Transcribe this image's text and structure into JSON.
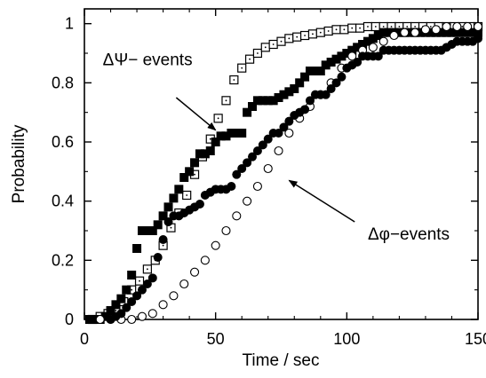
{
  "chart_data": {
    "type": "scatter",
    "title": "",
    "xlabel": "Time / sec",
    "ylabel": "Probability",
    "xlim": [
      0,
      150
    ],
    "ylim": [
      0,
      1.05
    ],
    "xticks": [
      0,
      50,
      100,
      150
    ],
    "yticks": [
      0,
      0.2,
      0.4,
      0.6,
      0.8,
      1
    ],
    "xtick_labels": [
      "0",
      "50",
      "100",
      "150"
    ],
    "ytick_labels": [
      "0",
      "0.2",
      "0.4",
      "0.6",
      "0.8",
      "1"
    ],
    "grid": false,
    "series": [
      {
        "marker": "open-square",
        "color": "#000000",
        "x": [
          3,
          6,
          9,
          12,
          15,
          18,
          21,
          24,
          27,
          30,
          33,
          36,
          39,
          42,
          45,
          48,
          51,
          54,
          57,
          60,
          63,
          66,
          69,
          72,
          75,
          78,
          81,
          84,
          87,
          90,
          93,
          96,
          99,
          102,
          105,
          108,
          111,
          114,
          117,
          120,
          123,
          126,
          129,
          132,
          135,
          138,
          141,
          144,
          147,
          150
        ],
        "y": [
          0,
          0.01,
          0.02,
          0.03,
          0.06,
          0.1,
          0.13,
          0.17,
          0.2,
          0.25,
          0.31,
          0.36,
          0.42,
          0.49,
          0.55,
          0.61,
          0.68,
          0.74,
          0.81,
          0.85,
          0.88,
          0.9,
          0.92,
          0.93,
          0.94,
          0.95,
          0.955,
          0.96,
          0.965,
          0.97,
          0.975,
          0.98,
          0.98,
          0.985,
          0.985,
          0.99,
          0.99,
          0.99,
          0.99,
          0.99,
          0.99,
          0.99,
          0.99,
          0.99,
          0.99,
          0.99,
          0.99,
          0.99,
          0.99,
          0.99
        ]
      },
      {
        "marker": "filled-square",
        "color": "#000000",
        "x": [
          2,
          4,
          6,
          8,
          10,
          12,
          14,
          16,
          18,
          20,
          22,
          24,
          26,
          28,
          30,
          32,
          34,
          36,
          38,
          40,
          42,
          44,
          46,
          48,
          50,
          52,
          54,
          56,
          58,
          60,
          62,
          64,
          66,
          68,
          70,
          72,
          74,
          76,
          78,
          80,
          82,
          84,
          86,
          88,
          90,
          92,
          94,
          96,
          98,
          100,
          102,
          104,
          106,
          108,
          110,
          112,
          114,
          116,
          118,
          120,
          122,
          124,
          126,
          128,
          130,
          132,
          134,
          136,
          138,
          140,
          142,
          144,
          146,
          148,
          150
        ],
        "y": [
          0,
          0,
          0,
          0.01,
          0.03,
          0.05,
          0.07,
          0.1,
          0.15,
          0.24,
          0.3,
          0.3,
          0.3,
          0.32,
          0.35,
          0.38,
          0.41,
          0.44,
          0.48,
          0.5,
          0.53,
          0.56,
          0.56,
          0.57,
          0.6,
          0.62,
          0.62,
          0.63,
          0.63,
          0.63,
          0.7,
          0.72,
          0.74,
          0.74,
          0.74,
          0.74,
          0.75,
          0.76,
          0.77,
          0.78,
          0.8,
          0.82,
          0.84,
          0.84,
          0.84,
          0.86,
          0.87,
          0.88,
          0.89,
          0.9,
          0.91,
          0.92,
          0.93,
          0.94,
          0.95,
          0.96,
          0.97,
          0.97,
          0.97,
          0.97,
          0.97,
          0.97,
          0.97,
          0.97,
          0.97,
          0.97,
          0.97,
          0.97,
          0.97,
          0.97,
          0.97,
          0.97,
          0.97,
          0.97,
          0.97
        ]
      },
      {
        "marker": "open-circle",
        "color": "#000000",
        "x": [
          6,
          10,
          14,
          18,
          22,
          26,
          30,
          34,
          38,
          42,
          46,
          50,
          54,
          58,
          62,
          66,
          70,
          74,
          78,
          82,
          86,
          90,
          94,
          98,
          102,
          106,
          110,
          114,
          118,
          122,
          126,
          130,
          134,
          138,
          142,
          146,
          150
        ],
        "y": [
          0,
          0,
          0,
          0,
          0.01,
          0.02,
          0.05,
          0.08,
          0.12,
          0.16,
          0.2,
          0.25,
          0.3,
          0.35,
          0.4,
          0.45,
          0.51,
          0.57,
          0.63,
          0.68,
          0.72,
          0.76,
          0.8,
          0.85,
          0.89,
          0.91,
          0.92,
          0.94,
          0.96,
          0.97,
          0.97,
          0.98,
          0.98,
          0.99,
          0.99,
          0.99,
          0.99
        ]
      },
      {
        "marker": "filled-circle",
        "color": "#000000",
        "x": [
          10,
          12,
          14,
          16,
          18,
          20,
          22,
          24,
          26,
          28,
          30,
          32,
          34,
          36,
          38,
          40,
          42,
          44,
          46,
          48,
          50,
          52,
          54,
          56,
          58,
          60,
          62,
          64,
          66,
          68,
          70,
          72,
          74,
          76,
          78,
          80,
          82,
          84,
          86,
          88,
          90,
          92,
          94,
          96,
          98,
          100,
          102,
          104,
          106,
          108,
          110,
          112,
          114,
          116,
          118,
          120,
          122,
          124,
          126,
          128,
          130,
          132,
          134,
          136,
          138,
          140,
          142,
          144,
          146,
          148,
          150
        ],
        "y": [
          0,
          0.01,
          0.02,
          0.04,
          0.06,
          0.08,
          0.1,
          0.12,
          0.14,
          0.21,
          0.27,
          0.33,
          0.35,
          0.35,
          0.36,
          0.37,
          0.38,
          0.39,
          0.42,
          0.43,
          0.44,
          0.44,
          0.44,
          0.45,
          0.49,
          0.51,
          0.53,
          0.55,
          0.57,
          0.59,
          0.61,
          0.63,
          0.63,
          0.65,
          0.67,
          0.69,
          0.7,
          0.71,
          0.74,
          0.76,
          0.76,
          0.76,
          0.78,
          0.8,
          0.82,
          0.85,
          0.86,
          0.87,
          0.89,
          0.89,
          0.89,
          0.89,
          0.91,
          0.91,
          0.91,
          0.91,
          0.91,
          0.91,
          0.91,
          0.91,
          0.91,
          0.91,
          0.91,
          0.91,
          0.92,
          0.93,
          0.94,
          0.94,
          0.94,
          0.94,
          0.95
        ]
      }
    ],
    "annotations": [
      {
        "text": "ΔΨ− events",
        "label_at": [
          7,
          0.86
        ],
        "arrow_from": [
          35,
          0.75
        ],
        "arrow_to": [
          50,
          0.64
        ]
      },
      {
        "text": "Δφ−events",
        "label_at": [
          108,
          0.27
        ],
        "arrow_from": [
          103,
          0.33
        ],
        "arrow_to": [
          78,
          0.47
        ]
      }
    ]
  }
}
